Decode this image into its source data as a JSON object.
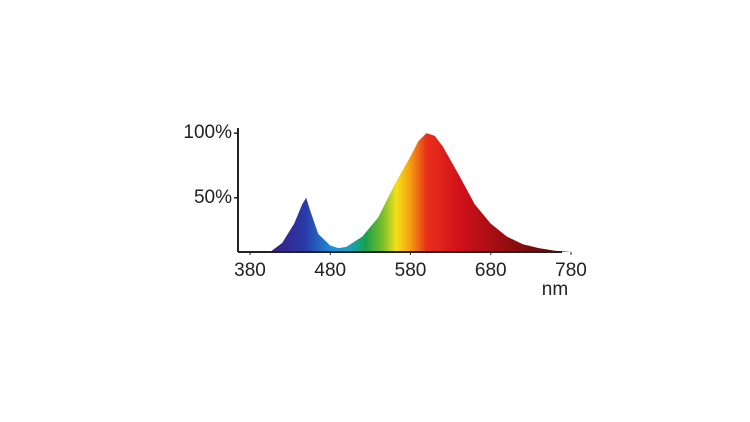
{
  "chart_data": {
    "type": "area",
    "x_label": "nm",
    "x": [
      405,
      420,
      435,
      445,
      450,
      455,
      465,
      480,
      490,
      500,
      520,
      540,
      560,
      580,
      590,
      600,
      610,
      620,
      640,
      660,
      680,
      700,
      720,
      740,
      760,
      780
    ],
    "values": [
      8,
      15,
      30,
      45,
      50,
      40,
      22,
      13,
      11,
      12,
      20,
      35,
      60,
      82,
      94,
      100,
      98,
      90,
      68,
      45,
      30,
      20,
      14,
      11,
      9,
      8
    ],
    "xlim": [
      365,
      785
    ],
    "ylim": [
      8,
      104
    ],
    "xticks": [
      380,
      480,
      580,
      680,
      780
    ],
    "yticks": [
      {
        "value": 50,
        "label": "50%"
      },
      {
        "value": 100,
        "label": "100%"
      }
    ],
    "grid": false
  }
}
